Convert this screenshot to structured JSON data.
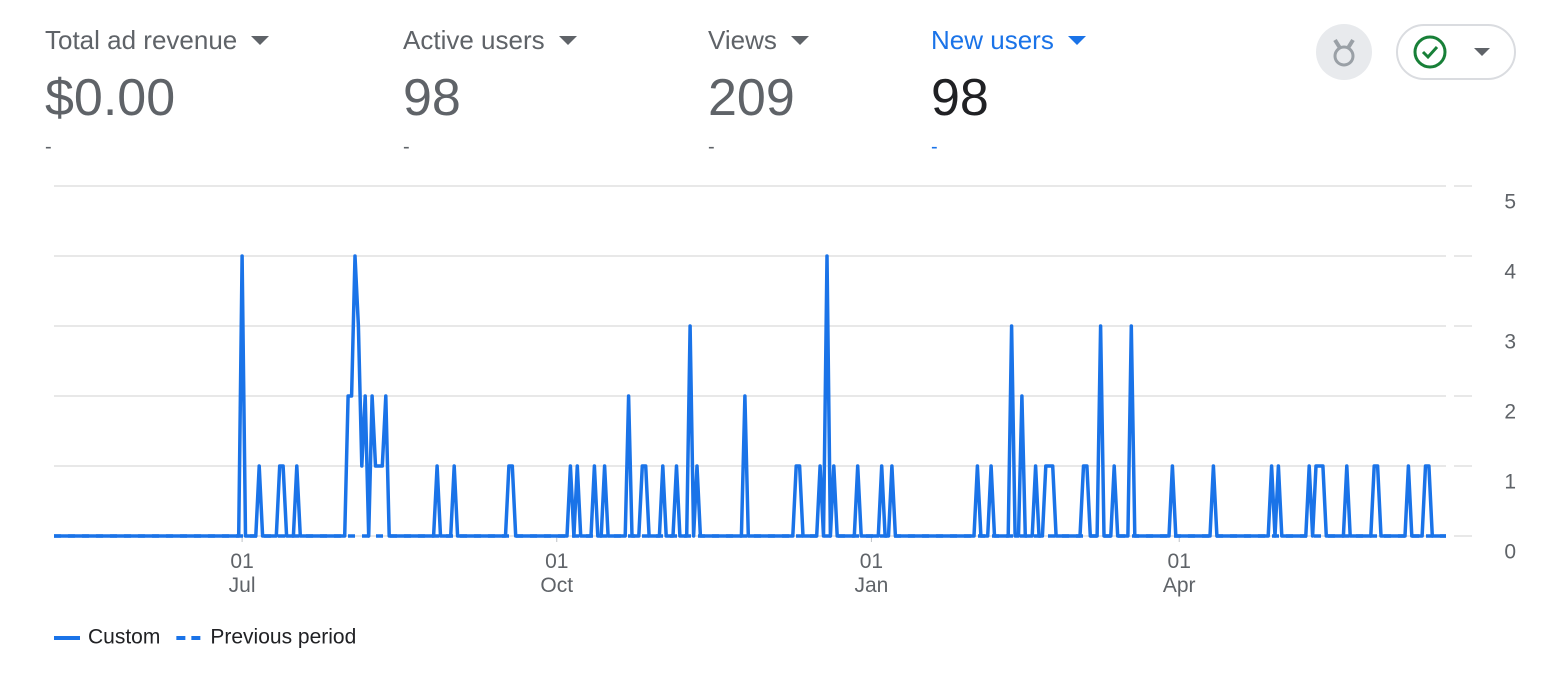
{
  "metrics": [
    {
      "label": "Total ad revenue",
      "value": "$0.00",
      "change": "-"
    },
    {
      "label": "Active users",
      "value": "98",
      "change": "-"
    },
    {
      "label": "Views",
      "value": "209",
      "change": "-"
    },
    {
      "label": "New users",
      "value": "98",
      "change": "-"
    }
  ],
  "chart_data": {
    "type": "line",
    "xlim": [
      0,
      407
    ],
    "xticks": [
      {
        "value": 55,
        "label": [
          "01",
          "Jul"
        ]
      },
      {
        "value": 147,
        "label": [
          "01",
          "Oct"
        ]
      },
      {
        "value": 239,
        "label": [
          "01",
          "Jan"
        ]
      },
      {
        "value": 329,
        "label": [
          "01",
          "Apr"
        ]
      }
    ],
    "ylim": [
      0,
      5
    ],
    "yticks": [
      0,
      1,
      2,
      3,
      4,
      5
    ],
    "grid": true,
    "series": [
      {
        "name": "Custom",
        "color": "#1a73e8",
        "style": "solid",
        "x": [
          0,
          54,
          55,
          56,
          59,
          60,
          61,
          65,
          66,
          67,
          68,
          70,
          71,
          72,
          85,
          86,
          87,
          88,
          89,
          90,
          91,
          92,
          93,
          94,
          95,
          96,
          97,
          98,
          111,
          112,
          113,
          116,
          117,
          118,
          132,
          133,
          134,
          135,
          150,
          151,
          152,
          153,
          154,
          157,
          158,
          159,
          160,
          161,
          162,
          167,
          168,
          169,
          171,
          172,
          173,
          174,
          177,
          178,
          179,
          181,
          182,
          183,
          185,
          186,
          187,
          188,
          189,
          201,
          202,
          203,
          216,
          217,
          218,
          219,
          223,
          224,
          225,
          226,
          227,
          228,
          229,
          234,
          235,
          236,
          241,
          242,
          243,
          244,
          245,
          246,
          269,
          270,
          271,
          273,
          274,
          275,
          279,
          280,
          281,
          282,
          283,
          284,
          286,
          287,
          288,
          289,
          290,
          291,
          292,
          293,
          300,
          301,
          302,
          303,
          305,
          306,
          307,
          309,
          310,
          311,
          314,
          315,
          316,
          326,
          327,
          328,
          338,
          339,
          340,
          355,
          356,
          357,
          358,
          359,
          366,
          367,
          368,
          369,
          370,
          371,
          372,
          377,
          378,
          379,
          385,
          386,
          387,
          388,
          395,
          396,
          397,
          400,
          401,
          402,
          403,
          407
        ],
        "values": [
          0,
          0,
          4,
          0,
          0,
          1,
          0,
          0,
          1,
          1,
          0,
          0,
          1,
          0,
          0,
          2,
          2,
          4,
          3,
          1,
          2,
          0,
          2,
          1,
          1,
          1,
          2,
          0,
          0,
          1,
          0,
          0,
          1,
          0,
          0,
          1,
          1,
          0,
          0,
          1,
          0,
          1,
          0,
          0,
          1,
          0,
          0,
          1,
          0,
          0,
          2,
          0,
          0,
          1,
          1,
          0,
          0,
          1,
          0,
          0,
          1,
          0,
          0,
          3,
          0,
          1,
          0,
          0,
          2,
          0,
          0,
          1,
          1,
          0,
          0,
          1,
          0,
          4,
          0,
          1,
          0,
          0,
          1,
          0,
          0,
          1,
          0,
          0,
          1,
          0,
          0,
          1,
          0,
          0,
          1,
          0,
          0,
          3,
          0,
          0,
          2,
          0,
          0,
          1,
          0,
          0,
          1,
          1,
          1,
          0,
          0,
          1,
          1,
          0,
          0,
          3,
          0,
          0,
          1,
          0,
          0,
          3,
          0,
          0,
          1,
          0,
          0,
          1,
          0,
          0,
          1,
          0,
          1,
          0,
          0,
          1,
          0,
          1,
          1,
          1,
          0,
          0,
          1,
          0,
          0,
          1,
          1,
          0,
          0,
          1,
          0,
          0,
          1,
          1,
          0,
          0
        ]
      },
      {
        "name": "Previous period",
        "color": "#1a73e8",
        "style": "dashed",
        "x": [
          0,
          407
        ],
        "values": [
          0,
          0
        ]
      }
    ]
  }
}
